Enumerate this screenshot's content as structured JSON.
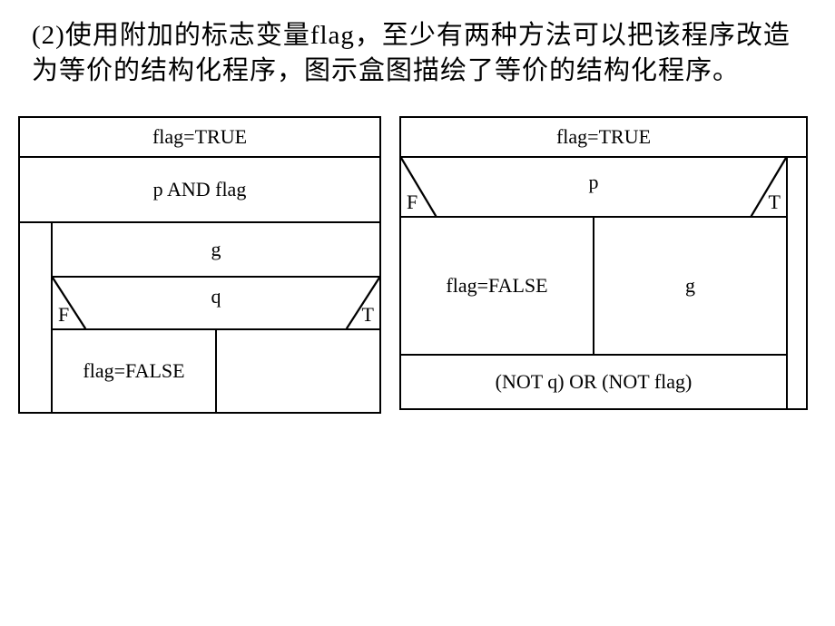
{
  "paragraph": "(2)使用附加的标志变量flag，至少有两种方法可以把该程序改造为等价的结构化程序，图示盒图描绘了等价的结构化程序。",
  "chart1": {
    "init": "flag=TRUE",
    "while_cond": "p AND flag",
    "body_stmt": "g",
    "if_cond": "q",
    "if_f": "F",
    "if_t": "T",
    "false_branch": "flag=FALSE",
    "true_branch": ""
  },
  "chart2": {
    "init": "flag=TRUE",
    "if_cond": "p",
    "if_f": "F",
    "if_t": "T",
    "false_branch": "flag=FALSE",
    "true_branch": "g",
    "until_cond": "(NOT  q) OR (NOT flag)"
  },
  "style": {
    "border_color": "#000000",
    "background": "#ffffff",
    "text_color": "#000000",
    "font_family": "Times New Roman, SimSun, serif",
    "paragraph_fontsize": 29,
    "cell_fontsize": 22,
    "border_width": 2
  }
}
